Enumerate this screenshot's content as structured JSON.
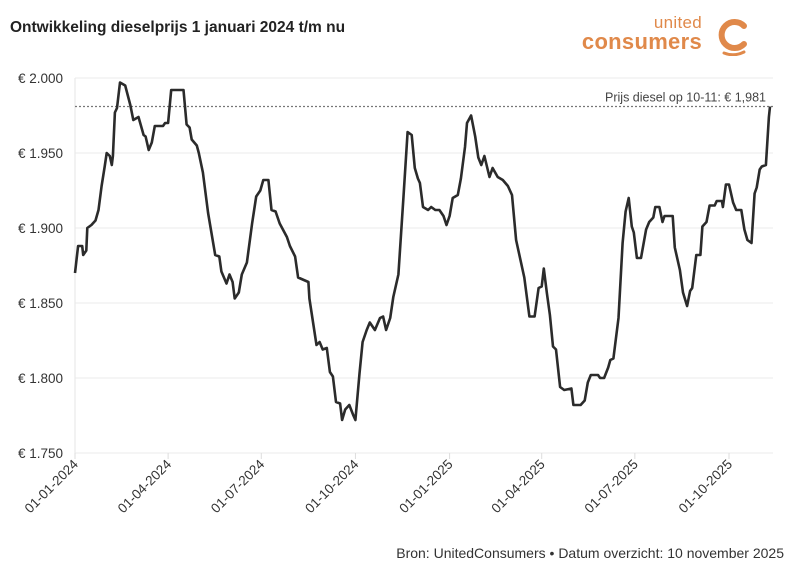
{
  "title": "Ontwikkeling dieselprijs 1 januari 2024 t/m nu",
  "logo": {
    "line1": "united",
    "line2": "consumers",
    "color": "#e0894a"
  },
  "footer": "Bron: UnitedConsumers • Datum overzicht: 10 november 2025",
  "chart_data": {
    "type": "line",
    "title": "Ontwikkeling dieselprijs 1 januari 2024 t/m nu",
    "xlabel": "",
    "ylabel": "",
    "ylim": [
      1.75,
      2.0
    ],
    "xlim": [
      "2024-01-01",
      "2025-11-10"
    ],
    "grid": "horizontal",
    "line_color": "#2b2b2b",
    "y_ticks": [
      {
        "value": 1.75,
        "label": "€ 1.750"
      },
      {
        "value": 1.8,
        "label": "€ 1.800"
      },
      {
        "value": 1.85,
        "label": "€ 1.850"
      },
      {
        "value": 1.9,
        "label": "€ 1.900"
      },
      {
        "value": 1.95,
        "label": "€ 1.950"
      },
      {
        "value": 2.0,
        "label": "€ 2.000"
      }
    ],
    "x_ticks": [
      {
        "date": "2024-01-01",
        "label": "01-01-2024"
      },
      {
        "date": "2024-04-01",
        "label": "01-04-2024"
      },
      {
        "date": "2024-07-01",
        "label": "01-07-2024"
      },
      {
        "date": "2024-10-01",
        "label": "01-10-2024"
      },
      {
        "date": "2025-01-01",
        "label": "01-01-2025"
      },
      {
        "date": "2025-04-01",
        "label": "01-04-2025"
      },
      {
        "date": "2025-07-01",
        "label": "01-07-2025"
      },
      {
        "date": "2025-10-01",
        "label": "01-10-2025"
      }
    ],
    "reference_line": {
      "value": 1.981,
      "label": "Prijs diesel op 10-11: € 1,981"
    },
    "points": [
      [
        "2024-01-01",
        1.87
      ],
      [
        "2024-01-04",
        1.888
      ],
      [
        "2024-01-08",
        1.888
      ],
      [
        "2024-01-09",
        1.882
      ],
      [
        "2024-01-12",
        1.885
      ],
      [
        "2024-01-13",
        1.9
      ],
      [
        "2024-01-17",
        1.902
      ],
      [
        "2024-01-21",
        1.905
      ],
      [
        "2024-01-24",
        1.912
      ],
      [
        "2024-01-27",
        1.928
      ],
      [
        "2024-01-30",
        1.941
      ],
      [
        "2024-02-01",
        1.95
      ],
      [
        "2024-02-04",
        1.948
      ],
      [
        "2024-02-06",
        1.942
      ],
      [
        "2024-02-07",
        1.948
      ],
      [
        "2024-02-09",
        1.977
      ],
      [
        "2024-02-11",
        1.98
      ],
      [
        "2024-02-14",
        1.997
      ],
      [
        "2024-02-19",
        1.995
      ],
      [
        "2024-02-24",
        1.982
      ],
      [
        "2024-02-27",
        1.972
      ],
      [
        "2024-03-03",
        1.974
      ],
      [
        "2024-03-08",
        1.962
      ],
      [
        "2024-03-10",
        1.961
      ],
      [
        "2024-03-13",
        1.952
      ],
      [
        "2024-03-16",
        1.957
      ],
      [
        "2024-03-19",
        1.968
      ],
      [
        "2024-03-27",
        1.968
      ],
      [
        "2024-03-29",
        1.97
      ],
      [
        "2024-04-01",
        1.97
      ],
      [
        "2024-04-04",
        1.992
      ],
      [
        "2024-04-16",
        1.992
      ],
      [
        "2024-04-19",
        1.969
      ],
      [
        "2024-04-22",
        1.967
      ],
      [
        "2024-04-24",
        1.959
      ],
      [
        "2024-04-29",
        1.955
      ],
      [
        "2024-05-01",
        1.95
      ],
      [
        "2024-05-05",
        1.937
      ],
      [
        "2024-05-10",
        1.91
      ],
      [
        "2024-05-17",
        1.882
      ],
      [
        "2024-05-21",
        1.881
      ],
      [
        "2024-05-23",
        1.871
      ],
      [
        "2024-05-28",
        1.863
      ],
      [
        "2024-05-31",
        1.869
      ],
      [
        "2024-06-03",
        1.864
      ],
      [
        "2024-06-05",
        1.853
      ],
      [
        "2024-06-09",
        1.857
      ],
      [
        "2024-06-12",
        1.869
      ],
      [
        "2024-06-17",
        1.877
      ],
      [
        "2024-06-22",
        1.903
      ],
      [
        "2024-06-26",
        1.921
      ],
      [
        "2024-06-30",
        1.925
      ],
      [
        "2024-07-03",
        1.932
      ],
      [
        "2024-07-08",
        1.932
      ],
      [
        "2024-07-11",
        1.912
      ],
      [
        "2024-07-15",
        1.911
      ],
      [
        "2024-07-19",
        1.903
      ],
      [
        "2024-07-26",
        1.894
      ],
      [
        "2024-07-29",
        1.888
      ],
      [
        "2024-08-03",
        1.881
      ],
      [
        "2024-08-06",
        1.867
      ],
      [
        "2024-08-16",
        1.864
      ],
      [
        "2024-08-17",
        1.853
      ],
      [
        "2024-08-24",
        1.822
      ],
      [
        "2024-08-27",
        1.824
      ],
      [
        "2024-08-30",
        1.819
      ],
      [
        "2024-09-03",
        1.82
      ],
      [
        "2024-09-06",
        1.804
      ],
      [
        "2024-09-09",
        1.801
      ],
      [
        "2024-09-12",
        1.784
      ],
      [
        "2024-09-16",
        1.783
      ],
      [
        "2024-09-18",
        1.772
      ],
      [
        "2024-09-21",
        1.779
      ],
      [
        "2024-09-25",
        1.782
      ],
      [
        "2024-09-29",
        1.775
      ],
      [
        "2024-10-01",
        1.772
      ],
      [
        "2024-10-05",
        1.803
      ],
      [
        "2024-10-08",
        1.824
      ],
      [
        "2024-10-12",
        1.832
      ],
      [
        "2024-10-15",
        1.837
      ],
      [
        "2024-10-20",
        1.832
      ],
      [
        "2024-10-25",
        1.84
      ],
      [
        "2024-10-28",
        1.841
      ],
      [
        "2024-10-31",
        1.832
      ],
      [
        "2024-11-04",
        1.84
      ],
      [
        "2024-11-07",
        1.854
      ],
      [
        "2024-11-12",
        1.869
      ],
      [
        "2024-11-17",
        1.921
      ],
      [
        "2024-11-21",
        1.964
      ],
      [
        "2024-11-25",
        1.962
      ],
      [
        "2024-11-28",
        1.94
      ],
      [
        "2024-12-01",
        1.933
      ],
      [
        "2024-12-03",
        1.93
      ],
      [
        "2024-12-06",
        1.914
      ],
      [
        "2024-12-11",
        1.912
      ],
      [
        "2024-12-14",
        1.914
      ],
      [
        "2024-12-18",
        1.912
      ],
      [
        "2024-12-22",
        1.912
      ],
      [
        "2024-12-26",
        1.908
      ],
      [
        "2024-12-29",
        1.902
      ],
      [
        "2025-01-01",
        1.908
      ],
      [
        "2025-01-04",
        1.92
      ],
      [
        "2025-01-09",
        1.922
      ],
      [
        "2025-01-12",
        1.933
      ],
      [
        "2025-01-16",
        1.954
      ],
      [
        "2025-01-18",
        1.97
      ],
      [
        "2025-01-22",
        1.975
      ],
      [
        "2025-01-26",
        1.961
      ],
      [
        "2025-01-29",
        1.947
      ],
      [
        "2025-02-01",
        1.942
      ],
      [
        "2025-02-04",
        1.948
      ],
      [
        "2025-02-09",
        1.934
      ],
      [
        "2025-02-12",
        1.94
      ],
      [
        "2025-02-17",
        1.934
      ],
      [
        "2025-02-22",
        1.932
      ],
      [
        "2025-02-27",
        1.928
      ],
      [
        "2025-03-03",
        1.922
      ],
      [
        "2025-03-07",
        1.892
      ],
      [
        "2025-03-15",
        1.867
      ],
      [
        "2025-03-20",
        1.841
      ],
      [
        "2025-03-25",
        1.841
      ],
      [
        "2025-03-29",
        1.86
      ],
      [
        "2025-04-01",
        1.861
      ],
      [
        "2025-04-03",
        1.873
      ],
      [
        "2025-04-06",
        1.857
      ],
      [
        "2025-04-09",
        1.842
      ],
      [
        "2025-04-12",
        1.821
      ],
      [
        "2025-04-15",
        1.819
      ],
      [
        "2025-04-19",
        1.794
      ],
      [
        "2025-04-23",
        1.792
      ],
      [
        "2025-04-30",
        1.793
      ],
      [
        "2025-05-02",
        1.782
      ],
      [
        "2025-05-09",
        1.782
      ],
      [
        "2025-05-13",
        1.785
      ],
      [
        "2025-05-16",
        1.797
      ],
      [
        "2025-05-19",
        1.802
      ],
      [
        "2025-05-26",
        1.802
      ],
      [
        "2025-05-28",
        1.8
      ],
      [
        "2025-06-01",
        1.8
      ],
      [
        "2025-06-05",
        1.807
      ],
      [
        "2025-06-07",
        1.812
      ],
      [
        "2025-06-10",
        1.813
      ],
      [
        "2025-06-15",
        1.84
      ],
      [
        "2025-06-19",
        1.89
      ],
      [
        "2025-06-22",
        1.911
      ],
      [
        "2025-06-25",
        1.92
      ],
      [
        "2025-06-28",
        1.901
      ],
      [
        "2025-06-30",
        1.897
      ],
      [
        "2025-07-03",
        1.88
      ],
      [
        "2025-07-07",
        1.88
      ],
      [
        "2025-07-12",
        1.899
      ],
      [
        "2025-07-15",
        1.904
      ],
      [
        "2025-07-19",
        1.907
      ],
      [
        "2025-07-21",
        1.914
      ],
      [
        "2025-07-25",
        1.914
      ],
      [
        "2025-07-28",
        1.904
      ],
      [
        "2025-07-30",
        1.908
      ],
      [
        "2025-08-07",
        1.908
      ],
      [
        "2025-08-09",
        1.887
      ],
      [
        "2025-08-14",
        1.872
      ],
      [
        "2025-08-17",
        1.857
      ],
      [
        "2025-08-21",
        1.848
      ],
      [
        "2025-08-24",
        1.858
      ],
      [
        "2025-08-26",
        1.86
      ],
      [
        "2025-08-30",
        1.882
      ],
      [
        "2025-09-03",
        1.882
      ],
      [
        "2025-09-05",
        1.901
      ],
      [
        "2025-09-09",
        1.904
      ],
      [
        "2025-09-12",
        1.915
      ],
      [
        "2025-09-17",
        1.915
      ],
      [
        "2025-09-19",
        1.918
      ],
      [
        "2025-09-24",
        1.918
      ],
      [
        "2025-09-25",
        1.914
      ],
      [
        "2025-09-28",
        1.929
      ],
      [
        "2025-10-01",
        1.929
      ],
      [
        "2025-10-05",
        1.917
      ],
      [
        "2025-10-08",
        1.912
      ],
      [
        "2025-10-13",
        1.912
      ],
      [
        "2025-10-16",
        1.899
      ],
      [
        "2025-10-19",
        1.892
      ],
      [
        "2025-10-23",
        1.89
      ],
      [
        "2025-10-26",
        1.923
      ],
      [
        "2025-10-28",
        1.927
      ],
      [
        "2025-10-31",
        1.939
      ],
      [
        "2025-11-02",
        1.941
      ],
      [
        "2025-11-06",
        1.942
      ],
      [
        "2025-11-09",
        1.974
      ],
      [
        "2025-11-10",
        1.981
      ]
    ]
  }
}
